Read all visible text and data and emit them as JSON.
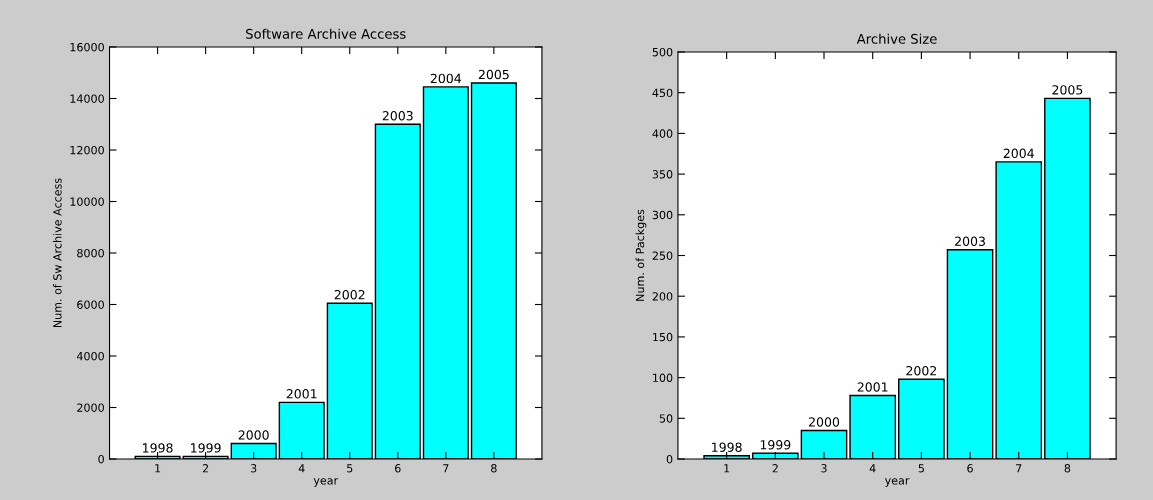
{
  "chart_data": [
    {
      "type": "bar",
      "title": "Software Archive Access",
      "xlabel": "year",
      "ylabel": "Num. of Sw Archive Access",
      "x": [
        1,
        2,
        3,
        4,
        5,
        6,
        7,
        8
      ],
      "series": [
        {
          "color": "#00ffff",
          "values": [
            100,
            100,
            600,
            2200,
            6050,
            13000,
            14450,
            14600
          ]
        }
      ],
      "xlim": [
        0,
        9
      ],
      "xticks": [
        1,
        2,
        3,
        4,
        5,
        6,
        7,
        8
      ],
      "ylim": [
        0,
        16000
      ],
      "yticks": [
        0,
        2000,
        4000,
        6000,
        8000,
        10000,
        12000,
        14000,
        16000
      ],
      "grid": false,
      "annotations": [
        {
          "text": "1998",
          "x": 1,
          "y": 100
        },
        {
          "text": "1999",
          "x": 2,
          "y": 100
        },
        {
          "text": "2000",
          "x": 3,
          "y": 600
        },
        {
          "text": "2001",
          "x": 4,
          "y": 2200
        },
        {
          "text": "2002",
          "x": 5,
          "y": 6050
        },
        {
          "text": "2003",
          "x": 6,
          "y": 13000
        },
        {
          "text": "2004",
          "x": 7,
          "y": 14450
        },
        {
          "text": "2005",
          "x": 8,
          "y": 14600
        }
      ]
    },
    {
      "type": "bar",
      "title": "Archive Size",
      "xlabel": "year",
      "ylabel": "Num. of Packges",
      "x": [
        1,
        2,
        3,
        4,
        5,
        6,
        7,
        8
      ],
      "series": [
        {
          "color": "#00ffff",
          "values": [
            4,
            7,
            35,
            78,
            98,
            257,
            365,
            443
          ]
        }
      ],
      "xlim": [
        0,
        9
      ],
      "xticks": [
        1,
        2,
        3,
        4,
        5,
        6,
        7,
        8
      ],
      "ylim": [
        0,
        500
      ],
      "yticks": [
        0,
        50,
        100,
        150,
        200,
        250,
        300,
        350,
        400,
        450,
        500
      ],
      "grid": false,
      "annotations": [
        {
          "text": "1998",
          "x": 1,
          "y": 4
        },
        {
          "text": "1999",
          "x": 2,
          "y": 7
        },
        {
          "text": "2000",
          "x": 3,
          "y": 35
        },
        {
          "text": "2001",
          "x": 4,
          "y": 78
        },
        {
          "text": "2002",
          "x": 5,
          "y": 98
        },
        {
          "text": "2003",
          "x": 6,
          "y": 257
        },
        {
          "text": "2004",
          "x": 7,
          "y": 365
        },
        {
          "text": "2005",
          "x": 8,
          "y": 443
        }
      ]
    }
  ]
}
